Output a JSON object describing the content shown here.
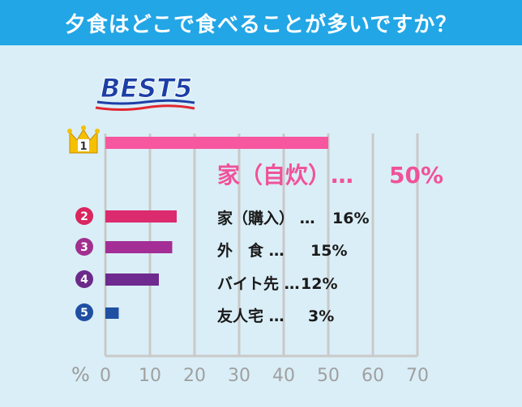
{
  "title": "夕食はどこで食べることが多いですか？",
  "badge": "BEST5",
  "axis_unit": "%",
  "colors": {
    "header": "#22a6e6",
    "background": "#daeef7",
    "gridline": "#c9c9c9",
    "top_label": "#f0529a"
  },
  "chart_data": {
    "type": "bar",
    "orientation": "horizontal",
    "categories": [
      "家（自炊）",
      "家（購入）",
      "外　食",
      "バイト先",
      "友人宅"
    ],
    "ranks": [
      "1",
      "2",
      "3",
      "4",
      "5"
    ],
    "values": [
      50,
      16,
      15,
      12,
      3
    ],
    "value_labels": [
      "50%",
      "16%",
      "15%",
      "12%",
      "3%"
    ],
    "bar_colors": [
      "#f6579f",
      "#dc2a6e",
      "#a42e96",
      "#6e2a8e",
      "#1f4fa3"
    ],
    "rank_colors": [
      "#f5c000",
      "#d9265f",
      "#a0308f",
      "#6b2a8a",
      "#1f4fa3"
    ],
    "xlim": [
      0,
      70
    ],
    "xticks": [
      "0",
      "10",
      "20",
      "30",
      "40",
      "50",
      "60",
      "70"
    ],
    "grid": true
  }
}
